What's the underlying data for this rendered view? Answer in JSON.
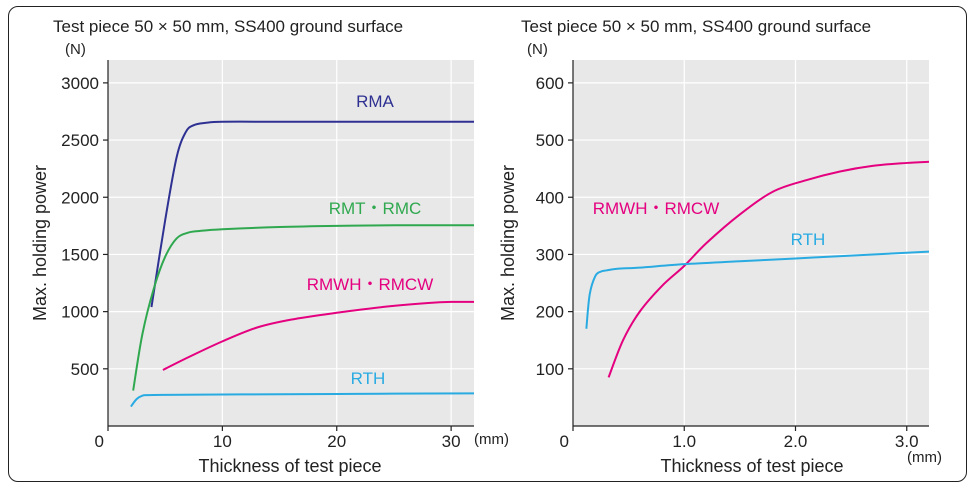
{
  "chart_data": [
    {
      "type": "line",
      "title": "Test piece 50 × 50 mm, SS400 ground surface",
      "xlabel": "Thickness of test piece",
      "ylabel": "Max. holding power",
      "x_unit": "(mm)",
      "y_unit": "(N)",
      "xlim": [
        0,
        32
      ],
      "ylim": [
        0,
        3200
      ],
      "x_ticks": [
        0,
        10,
        20,
        30
      ],
      "y_ticks": [
        500,
        1000,
        1500,
        2000,
        2500,
        3000
      ],
      "x_tick_labels": [
        "0",
        "10",
        "20",
        "30"
      ],
      "y_tick_labels": [
        "500",
        "1000",
        "1500",
        "2000",
        "2500",
        "3000"
      ],
      "grid": true,
      "series": [
        {
          "name": "RMA",
          "color": "#2e3192",
          "x": [
            3.8,
            5.0,
            6.0,
            6.8,
            7.5,
            8.5,
            10,
            15,
            20,
            25,
            32
          ],
          "y": [
            1040,
            1800,
            2350,
            2570,
            2630,
            2650,
            2660,
            2660,
            2660,
            2660,
            2660
          ]
        },
        {
          "name": "RMT・RMC",
          "color": "#2fa84f",
          "x": [
            2.2,
            3.0,
            4.0,
            5.0,
            6.0,
            7.0,
            8.0,
            10,
            15,
            20,
            25,
            32
          ],
          "y": [
            310,
            800,
            1200,
            1480,
            1640,
            1690,
            1705,
            1720,
            1740,
            1750,
            1755,
            1755
          ]
        },
        {
          "name": "RMWH・RMCW",
          "color": "#e4007f",
          "x": [
            4.8,
            7,
            10,
            13,
            16,
            20,
            24,
            28,
            30,
            32
          ],
          "y": [
            490,
            600,
            740,
            860,
            930,
            990,
            1040,
            1075,
            1085,
            1085
          ]
        },
        {
          "name": "RTH",
          "color": "#29abe2",
          "x": [
            2.0,
            2.5,
            3.0,
            3.5,
            5,
            10,
            15,
            20,
            25,
            32
          ],
          "y": [
            170,
            235,
            265,
            270,
            272,
            275,
            278,
            280,
            283,
            285
          ]
        }
      ]
    },
    {
      "type": "line",
      "title": "Test piece 50 × 50 mm, SS400 ground surface",
      "xlabel": "Thickness of test piece",
      "ylabel": "Max. holding power",
      "x_unit": "(mm)",
      "y_unit": "(N)",
      "xlim": [
        0,
        3.2
      ],
      "ylim": [
        0,
        640
      ],
      "x_ticks": [
        0,
        1.0,
        2.0,
        3.0
      ],
      "y_ticks": [
        100,
        200,
        300,
        400,
        500,
        600
      ],
      "x_tick_labels": [
        "0",
        "1.0",
        "2.0",
        "3.0"
      ],
      "y_tick_labels": [
        "100",
        "200",
        "300",
        "400",
        "500",
        "600"
      ],
      "grid": true,
      "series": [
        {
          "name": "RMWH・RMCW",
          "color": "#e4007f",
          "x": [
            0.32,
            0.45,
            0.6,
            0.8,
            1.0,
            1.2,
            1.5,
            1.8,
            2.1,
            2.4,
            2.7,
            3.0,
            3.2
          ],
          "y": [
            85,
            150,
            200,
            245,
            280,
            320,
            370,
            410,
            430,
            445,
            455,
            460,
            462
          ]
        },
        {
          "name": "RTH",
          "color": "#29abe2",
          "x": [
            0.12,
            0.15,
            0.2,
            0.25,
            0.3,
            0.4,
            0.6,
            1.0,
            1.5,
            2.0,
            2.5,
            3.2
          ],
          "y": [
            170,
            230,
            262,
            270,
            272,
            275,
            277,
            283,
            288,
            293,
            298,
            305
          ]
        }
      ]
    }
  ]
}
